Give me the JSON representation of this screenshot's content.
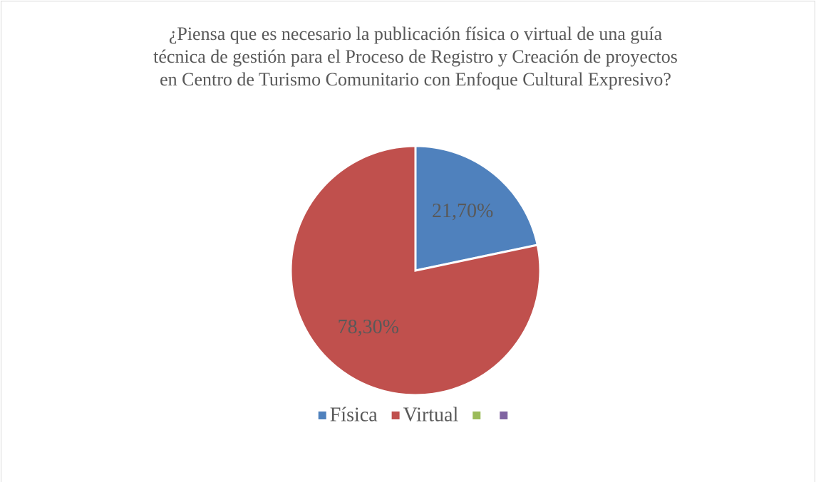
{
  "chart_data": {
    "type": "pie",
    "title": [
      "¿Piensa que es necesario la publicación física o virtual de una guía",
      "técnica de gestión para el Proceso de Registro y Creación de proyectos",
      "en Centro de Turismo Comunitario con Enfoque Cultural Expresivo?"
    ],
    "categories": [
      "Física",
      "Virtual",
      null,
      null
    ],
    "values": [
      21.7,
      78.3,
      null,
      null
    ],
    "value_labels": [
      "21,70%",
      "78,30%",
      null,
      null
    ],
    "colors": [
      "#4f81bd",
      "#c0504d",
      "#9bbb59",
      "#8064a2"
    ],
    "legend": "bottom"
  }
}
